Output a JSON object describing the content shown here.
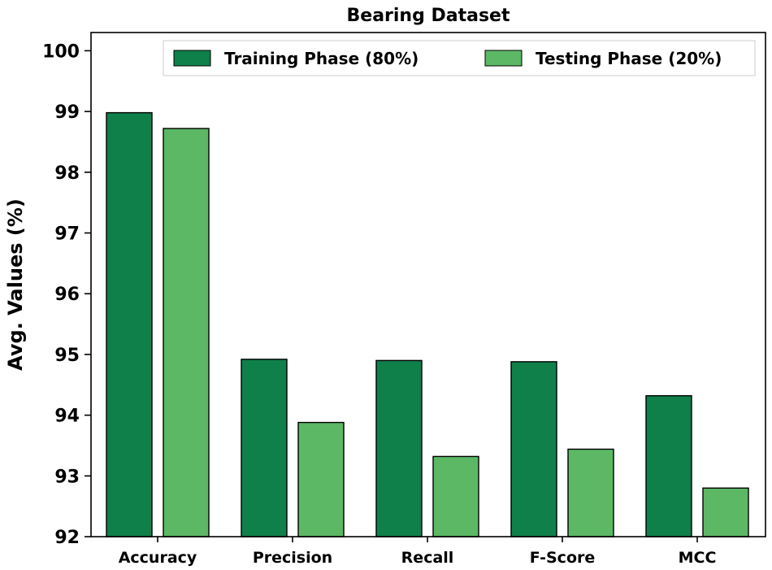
{
  "chart_data": {
    "type": "bar",
    "title": "Bearing Dataset",
    "xlabel": "",
    "ylabel": "Avg. Values (%)",
    "ylim": [
      92,
      100.3
    ],
    "yticks": [
      92,
      93,
      94,
      95,
      96,
      97,
      98,
      99,
      100
    ],
    "categories": [
      "Accuracy",
      "Precision",
      "Recall",
      "F-Score",
      "MCC"
    ],
    "series": [
      {
        "name": "Training Phase (80%)",
        "color": "#10804a",
        "values": [
          98.98,
          94.92,
          94.9,
          94.88,
          94.32
        ]
      },
      {
        "name": "Testing Phase (20%)",
        "color": "#5cb865",
        "values": [
          98.72,
          93.88,
          93.32,
          93.44,
          92.8
        ]
      }
    ],
    "legend": "top-right",
    "grid": false
  }
}
